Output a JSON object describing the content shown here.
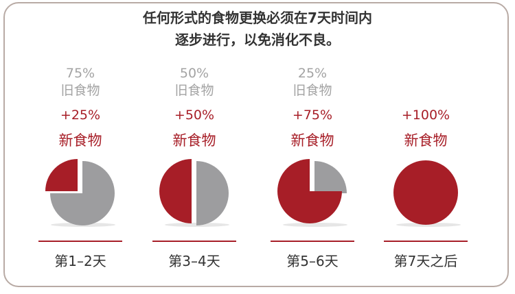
{
  "title_lines": [
    "任何形式的食物更换必须在7天时间内",
    "逐步进行，以免消化不良。"
  ],
  "colors": {
    "new": "#a71e27",
    "old": "#9d9d9f"
  },
  "stages": [
    {
      "old_pct": "75%",
      "old_label": "旧食物",
      "new_pct": "+25%",
      "new_label": "新食物",
      "new_fraction": 0.25,
      "day": "第1–2天"
    },
    {
      "old_pct": "50%",
      "old_label": "旧食物",
      "new_pct": "+50%",
      "new_label": "新食物",
      "new_fraction": 0.5,
      "day": "第3–4天"
    },
    {
      "old_pct": "25%",
      "old_label": "旧食物",
      "new_pct": "+75%",
      "new_label": "新食物",
      "new_fraction": 0.75,
      "day": "第5–6天"
    },
    {
      "old_pct": "",
      "old_label": "",
      "new_pct": "+100%",
      "new_label": "新食物",
      "new_fraction": 1.0,
      "day": "第7天之后"
    }
  ]
}
